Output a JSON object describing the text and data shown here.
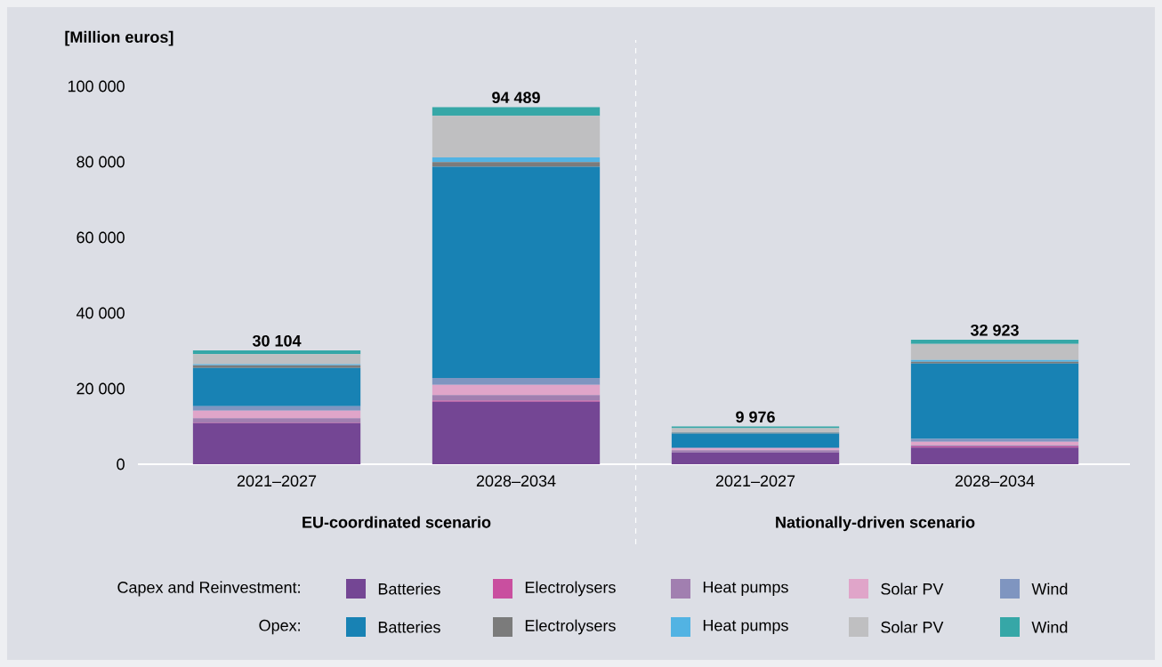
{
  "chart_data": {
    "type": "bar",
    "stacked": true,
    "ylabel": "[Million euros]",
    "categories": [
      "2021–2027",
      "2028–2034",
      "2021–2027",
      "2028–2034"
    ],
    "ylim": [
      0,
      100000
    ],
    "yticks": [
      {
        "value": 0,
        "label": "0"
      },
      {
        "value": 20000,
        "label": "20 000"
      },
      {
        "value": 40000,
        "label": "40 000"
      },
      {
        "value": 60000,
        "label": "60 000"
      },
      {
        "value": 80000,
        "label": "80 000"
      },
      {
        "value": 100000,
        "label": "100 000"
      }
    ],
    "series": [
      {
        "name": "Batteries",
        "color": "#744694",
        "values": [
          10900,
          16500,
          3100,
          4400
        ]
      },
      {
        "name": "Electrolysers",
        "color": "#c94f9f",
        "values": [
          100,
          300,
          null,
          300
        ]
      },
      {
        "name": "Heat pumps",
        "color": "#a17fb0",
        "values": [
          1150,
          1500,
          600,
          300
        ]
      },
      {
        "name": "Solar PV",
        "color": "#e0a5c9",
        "values": [
          2000,
          2700,
          500,
          940
        ]
      },
      {
        "name": "Wind",
        "color": "#7f95c0",
        "values": [
          1200,
          1800,
          300,
          780
        ]
      },
      {
        "name": "Batteries",
        "color": "#1882b4",
        "values": [
          10100,
          55900,
          3600,
          19920
        ]
      },
      {
        "name": "Electrolysers",
        "color": "#7b7b7b",
        "values": [
          750,
          1250,
          250,
          470
        ]
      },
      {
        "name": "Heat pumps",
        "color": "#52b3e3",
        "values": [
          250,
          1250,
          100,
          470
        ]
      },
      {
        "name": "Solar PV",
        "color": "#bfbfc1",
        "values": [
          2650,
          11000,
          1100,
          4230
        ]
      },
      {
        "name": "Wind",
        "color": "#36a7a7",
        "values": [
          1004,
          2289,
          426,
          1113
        ]
      }
    ],
    "totals": [
      "30 104",
      "94 489",
      "9 976",
      "32 923"
    ],
    "annotations": [
      "EU-coordinated scenario",
      "Nationally-driven scenario",
      "Capex and Reinvestment:",
      "Opex:"
    ],
    "legend": "bottom"
  }
}
